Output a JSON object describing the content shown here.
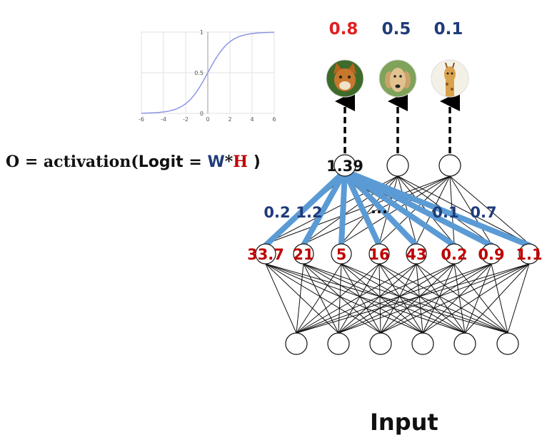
{
  "sigmoid_plot": {
    "x_ticks": [
      "-6",
      "-4",
      "-2",
      "0",
      "2",
      "4",
      "6"
    ],
    "y_ticks": [
      "0",
      "0.5",
      "1"
    ],
    "curve_color": "#8c96e6"
  },
  "formula": {
    "prefix": "O = activation(",
    "logit": "Logit",
    "equals": " = ",
    "w": "W",
    "star": "*",
    "h": "H",
    "close": " )",
    "colors": {
      "w": "#1f3b7a",
      "h": "#c00000"
    }
  },
  "outputs": [
    {
      "prob": "0.8",
      "color": "#e02020",
      "icon": "cat-photo-icon"
    },
    {
      "prob": "0.5",
      "color": "#1f3b7a",
      "icon": "dog-photo-icon"
    },
    {
      "prob": "0.1",
      "color": "#1f3b7a",
      "icon": "giraffe-photo-icon"
    }
  ],
  "logit_node_value": "1.39",
  "weights": {
    "left": [
      "0.2",
      "1.2"
    ],
    "ellipsis": "...",
    "right": [
      "0.1",
      "0.7"
    ],
    "color": "#1f3b7a",
    "line_color": "#5b9bd5"
  },
  "hidden_values": [
    "33.7",
    "21",
    "5",
    "16",
    "43",
    "0.2",
    "0.9",
    "1.1"
  ],
  "hidden_value_color": "#c00000",
  "input_node_count": 6,
  "input_label": "Input"
}
